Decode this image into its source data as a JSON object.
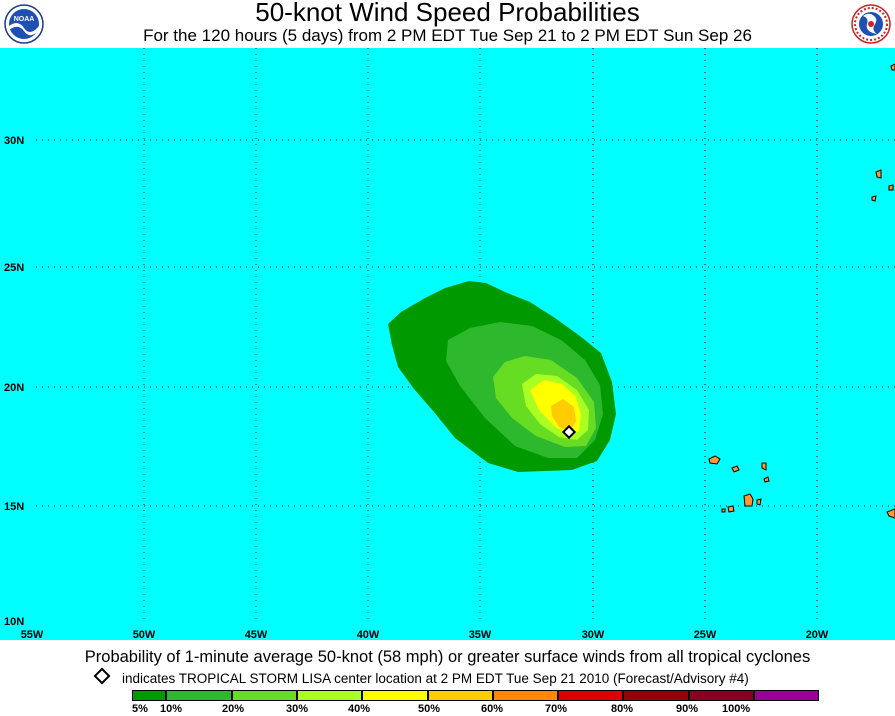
{
  "header": {
    "title": "50-knot Wind Speed Probabilities",
    "subtitle": "For the 120 hours (5 days) from 2 PM EDT Tue Sep 21 to 2 PM EDT Sun Sep 26",
    "left_logo": {
      "icon": "noaa-logo-icon",
      "text": "NOAA"
    },
    "right_logo": {
      "icon": "nws-logo-icon",
      "text": "NATIONAL WEATHER SERVICE"
    }
  },
  "map": {
    "ocean_color": "#00ffff",
    "land_color": "#ff9933",
    "longitude_labels": [
      "55W",
      "50W",
      "45W",
      "40W",
      "35W",
      "30W",
      "25W",
      "20W"
    ],
    "latitude_labels": [
      "30N",
      "25N",
      "20N",
      "15N",
      "10N"
    ],
    "grid": "dotted",
    "probability_contours": [
      {
        "level": "5%",
        "color": "#009900"
      },
      {
        "level": "10%",
        "color": "#2eb82e"
      },
      {
        "level": "20%",
        "color": "#66dd22"
      },
      {
        "level": "30%",
        "color": "#aaff22"
      },
      {
        "level": "40%",
        "color": "#ffff00"
      },
      {
        "level": "50%",
        "color": "#ffcc00"
      }
    ],
    "storm_marker": {
      "icon": "diamond-icon",
      "lon": -31.2,
      "lat": 18.2
    }
  },
  "footer": {
    "main": "Probability of 1-minute average 50-knot (58 mph) or greater surface winds from all tropical cyclones",
    "note": "indicates TROPICAL STORM LISA center location at 2 PM EDT Tue Sep 21 2010 (Forecast/Advisory #4)"
  },
  "legend": {
    "swatch_colors": [
      "#009900",
      "#2eb82e",
      "#66dd22",
      "#aaff22",
      "#ffff00",
      "#ffcc00",
      "#ff8800",
      "#dd0000",
      "#990000",
      "#880022",
      "#990099"
    ],
    "labels": [
      "5%",
      "10%",
      "20%",
      "30%",
      "40%",
      "50%",
      "60%",
      "70%",
      "80%",
      "90%",
      "100%"
    ]
  }
}
